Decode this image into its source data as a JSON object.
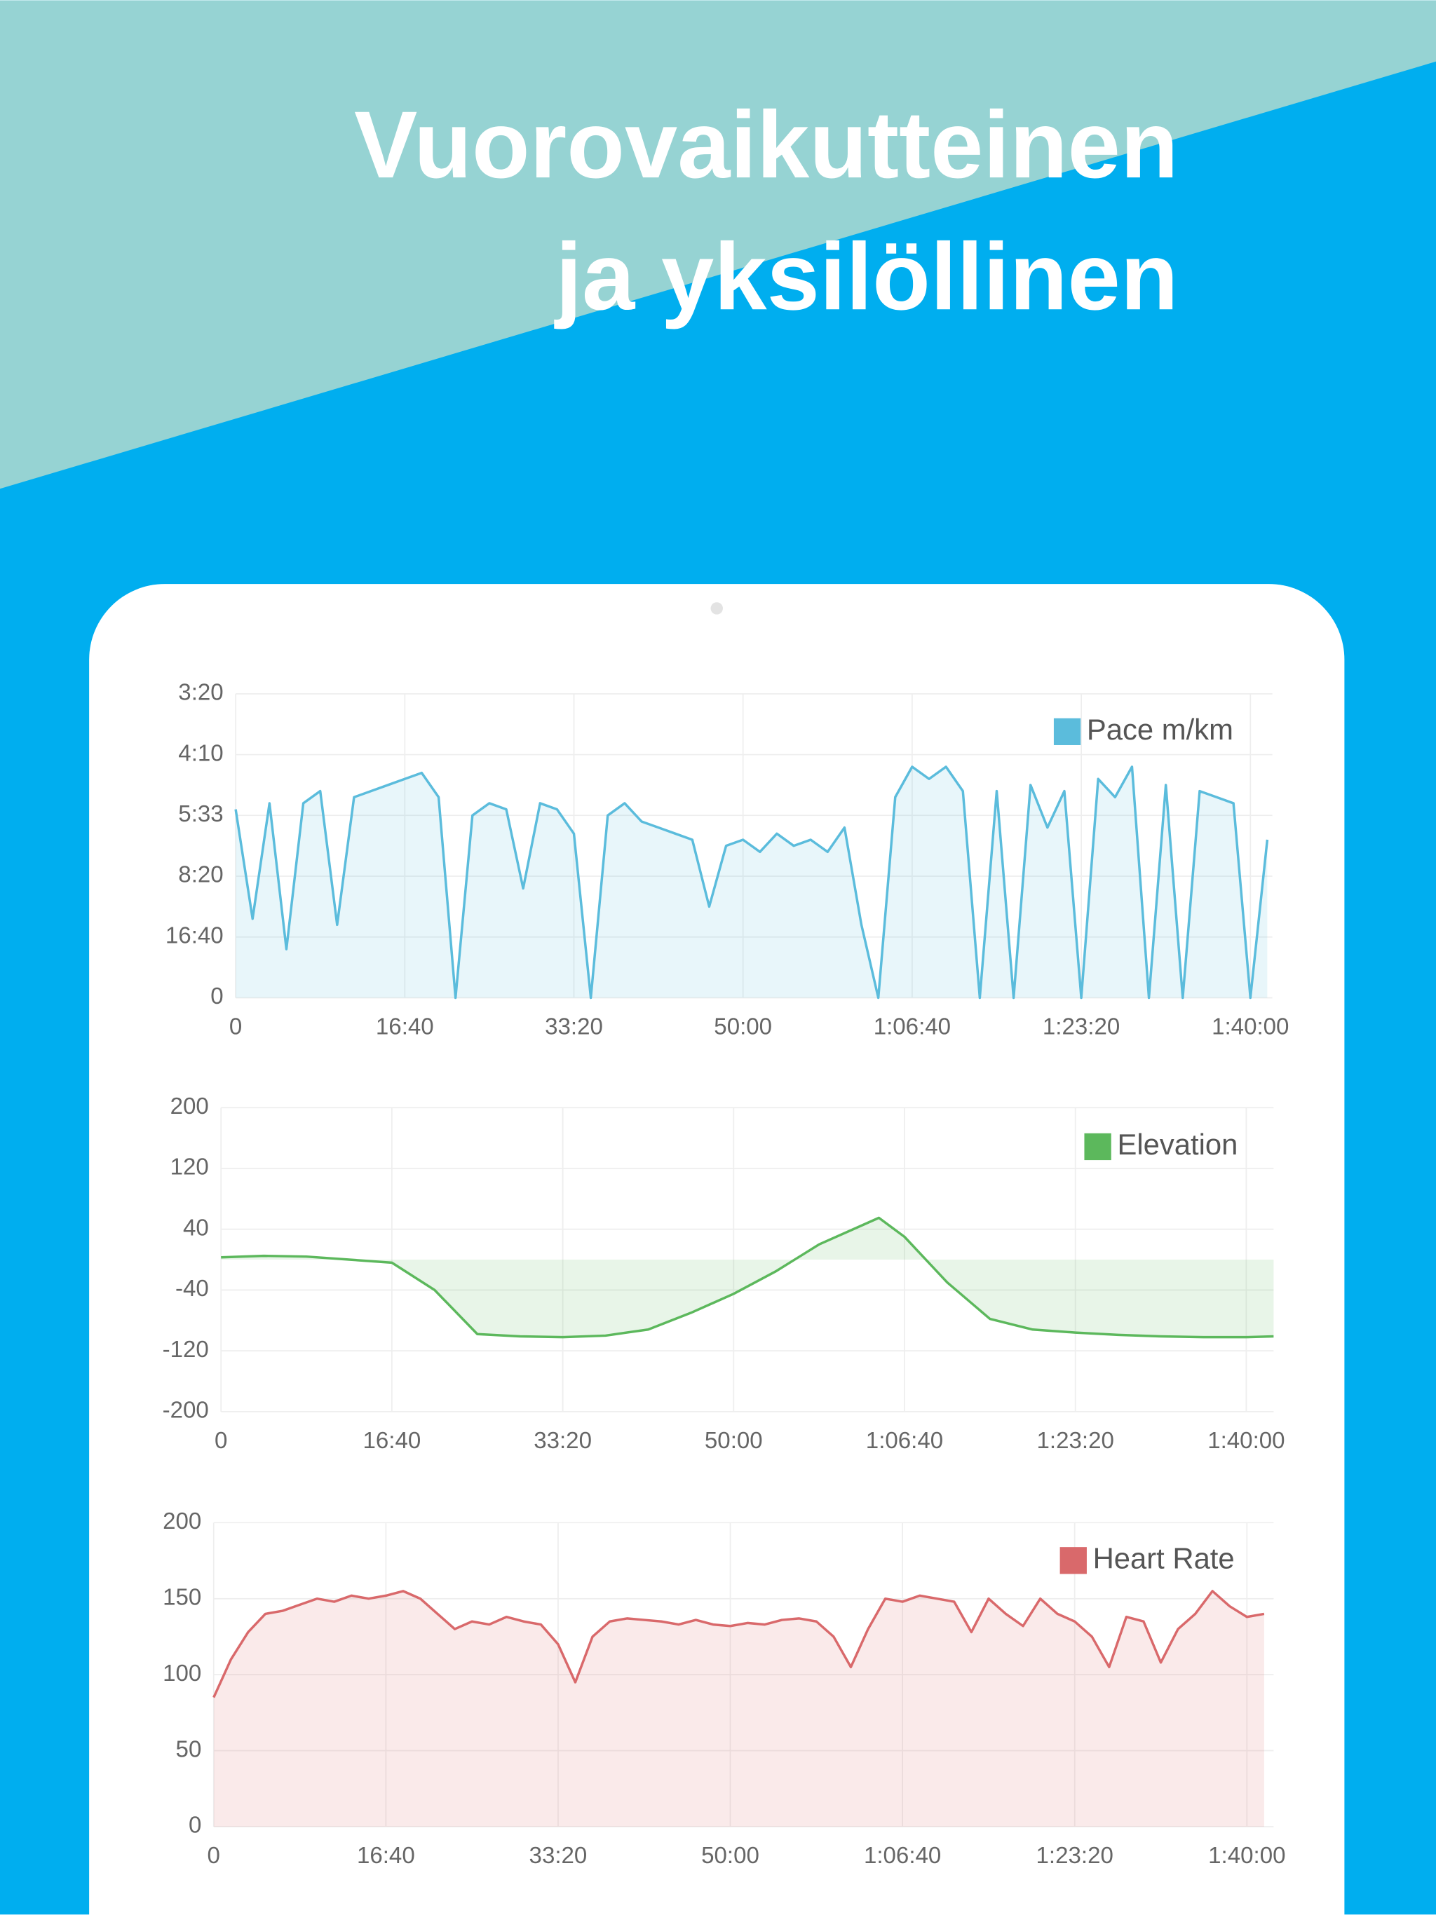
{
  "headline": [
    "Vuorovaikutteinen",
    "ja yksilöllinen"
  ],
  "chart_data": [
    {
      "type": "line",
      "x": [
        0,
        100,
        200,
        300,
        400,
        500,
        600,
        700,
        800,
        900,
        1000,
        1100,
        1200,
        1300,
        1400,
        1500,
        1600,
        1700,
        1800,
        1900,
        2000,
        2100,
        2200,
        2300,
        2400,
        2500,
        2600,
        2700,
        2800,
        2900,
        3000,
        3100,
        3200,
        3300,
        3400,
        3500,
        3600,
        3700,
        3800,
        3900,
        4000,
        4100,
        4200,
        4300,
        4400,
        4500,
        4600,
        4700,
        4800,
        4900,
        5000,
        5100,
        5200,
        5300,
        5400,
        5500,
        5600,
        5700,
        5800,
        5900,
        6000,
        6100
      ],
      "series": [
        {
          "name": "Pace m/km",
          "color": "#5bbcdc",
          "values": [
            3.1,
            1.3,
            3.2,
            0.8,
            3.2,
            3.4,
            1.2,
            3.3,
            3.4,
            3.5,
            3.6,
            3.7,
            3.3,
            0,
            3.0,
            3.2,
            3.1,
            1.8,
            3.2,
            3.1,
            2.7,
            0,
            3.0,
            3.2,
            2.9,
            2.8,
            2.7,
            2.6,
            1.5,
            2.5,
            2.6,
            2.4,
            2.7,
            2.5,
            2.6,
            2.4,
            2.8,
            1.2,
            0,
            3.3,
            3.8,
            3.6,
            3.8,
            3.4,
            0,
            3.4,
            0,
            3.5,
            2.8,
            3.4,
            0,
            3.6,
            3.3,
            3.8,
            0,
            3.5,
            0,
            3.4,
            3.3,
            3.2,
            0,
            2.6
          ]
        }
      ],
      "xlim": [
        0,
        6130
      ],
      "xticks": [
        0,
        {
          "value": 1000,
          "label": "16:40"
        },
        {
          "value": 2000,
          "label": "33:20"
        },
        {
          "value": 3000,
          "label": "50:00"
        },
        {
          "value": 4000,
          "label": "1:06:40"
        },
        {
          "value": 5000,
          "label": "1:23:20"
        },
        {
          "value": 6000,
          "label": "1:40:00"
        }
      ],
      "ylim": [
        0,
        5
      ],
      "yticks": [
        0,
        {
          "value": 1,
          "label": "16:40"
        },
        {
          "value": 2,
          "label": "8:20"
        },
        {
          "value": 3,
          "label": "5:33"
        },
        {
          "value": 4,
          "label": "4:10"
        },
        {
          "value": 5,
          "label": "3:20"
        }
      ],
      "grid": true,
      "fill": true
    },
    {
      "type": "line",
      "x": [
        0,
        250,
        500,
        750,
        1000,
        1250,
        1500,
        1750,
        2000,
        2250,
        2500,
        2750,
        3000,
        3250,
        3500,
        3750,
        3850,
        4000,
        4250,
        4500,
        4750,
        5000,
        5250,
        5500,
        5750,
        6000,
        6160
      ],
      "series": [
        {
          "name": "Elevation",
          "color": "#5cb85c",
          "values": [
            3,
            5,
            4,
            0,
            -4,
            -40,
            -98,
            -101,
            -102,
            -100,
            -92,
            -70,
            -45,
            -15,
            20,
            45,
            55,
            30,
            -30,
            -78,
            -92,
            -96,
            -99,
            -101,
            -102,
            -102,
            -101
          ]
        }
      ],
      "xlim": [
        0,
        6160
      ],
      "xticks": [
        0,
        {
          "value": 1000,
          "label": "16:40"
        },
        {
          "value": 2000,
          "label": "33:20"
        },
        {
          "value": 3000,
          "label": "50:00"
        },
        {
          "value": 4000,
          "label": "1:06:40"
        },
        {
          "value": 5000,
          "label": "1:23:20"
        },
        {
          "value": 6000,
          "label": "1:40:00"
        }
      ],
      "ylim": [
        -200,
        200
      ],
      "yticks": [
        -200,
        -120,
        -40,
        40,
        120,
        200
      ],
      "grid": true,
      "fill": true
    },
    {
      "type": "line",
      "x": [
        0,
        100,
        200,
        300,
        400,
        500,
        600,
        700,
        800,
        900,
        1000,
        1100,
        1200,
        1300,
        1400,
        1500,
        1600,
        1700,
        1800,
        1900,
        2000,
        2100,
        2200,
        2300,
        2400,
        2500,
        2600,
        2700,
        2800,
        2900,
        3000,
        3100,
        3200,
        3300,
        3400,
        3500,
        3600,
        3700,
        3800,
        3900,
        4000,
        4100,
        4200,
        4300,
        4400,
        4500,
        4600,
        4700,
        4800,
        4900,
        5000,
        5100,
        5200,
        5300,
        5400,
        5500,
        5600,
        5700,
        5800,
        5900,
        6000,
        6100
      ],
      "series": [
        {
          "name": "Heart Rate",
          "color": "#d9696b",
          "values": [
            85,
            110,
            128,
            140,
            142,
            146,
            150,
            148,
            152,
            150,
            152,
            155,
            150,
            140,
            130,
            135,
            133,
            138,
            135,
            133,
            120,
            95,
            125,
            135,
            137,
            136,
            135,
            133,
            136,
            133,
            132,
            134,
            133,
            136,
            137,
            135,
            125,
            105,
            130,
            150,
            148,
            152,
            150,
            148,
            128,
            150,
            140,
            132,
            150,
            140,
            135,
            125,
            105,
            138,
            135,
            108,
            130,
            140,
            155,
            145,
            138,
            140
          ]
        }
      ],
      "xlim": [
        0,
        6155
      ],
      "xticks": [
        0,
        {
          "value": 1000,
          "label": "16:40"
        },
        {
          "value": 2000,
          "label": "33:20"
        },
        {
          "value": 3000,
          "label": "50:00"
        },
        {
          "value": 4000,
          "label": "1:06:40"
        },
        {
          "value": 5000,
          "label": "1:23:20"
        },
        {
          "value": 6000,
          "label": "1:40:00"
        }
      ],
      "ylim": [
        0,
        200
      ],
      "yticks": [
        0,
        50,
        100,
        150,
        200
      ],
      "grid": true,
      "fill": true
    }
  ]
}
